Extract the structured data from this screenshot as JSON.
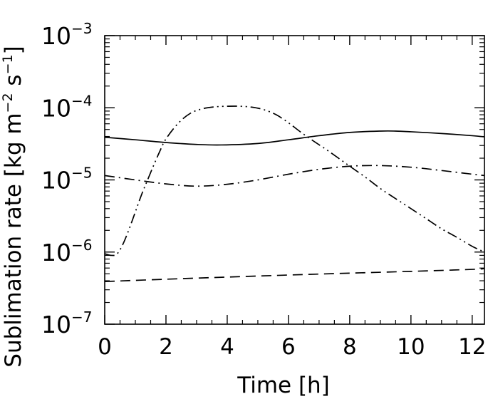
{
  "chart_data": {
    "type": "line",
    "title": "",
    "xlabel": "Time [h]",
    "ylabel_parts": [
      "Sublimation rate [kg m",
      "−2",
      " s",
      "−1",
      "]"
    ],
    "x_scale": "linear",
    "y_scale": "log",
    "xlim": [
      0,
      12.4
    ],
    "ylim": [
      1e-07,
      0.001
    ],
    "x_ticks": [
      {
        "value": 0,
        "label": "0"
      },
      {
        "value": 2,
        "label": "2"
      },
      {
        "value": 4,
        "label": "4"
      },
      {
        "value": 6,
        "label": "6"
      },
      {
        "value": 8,
        "label": "8"
      },
      {
        "value": 10,
        "label": "10"
      },
      {
        "value": 12,
        "label": "12"
      }
    ],
    "y_ticks": [
      {
        "value": 1e-07,
        "base": "10",
        "exp": "−7"
      },
      {
        "value": 1e-06,
        "base": "10",
        "exp": "−6"
      },
      {
        "value": 1e-05,
        "base": "10",
        "exp": "−5"
      },
      {
        "value": 0.0001,
        "base": "10",
        "exp": "−4"
      },
      {
        "value": 0.001,
        "base": "10",
        "exp": "−3"
      }
    ],
    "grid": false,
    "legend": "none",
    "color": "#000000",
    "series": [
      {
        "style": "solid",
        "x": [
          0,
          1,
          2,
          3,
          3.8,
          5,
          6,
          7,
          8,
          9,
          9.5,
          10,
          11,
          12,
          12.4
        ],
        "y": [
          3.9e-05,
          3.6e-05,
          3.3e-05,
          3.1e-05,
          3.05e-05,
          3.2e-05,
          3.6e-05,
          4.1e-05,
          4.55e-05,
          4.75e-05,
          4.75e-05,
          4.65e-05,
          4.4e-05,
          4.1e-05,
          3.95e-05
        ]
      },
      {
        "style": "dashdot",
        "x": [
          0,
          1,
          2,
          3,
          4,
          5,
          6,
          7,
          8,
          9,
          10,
          11,
          12,
          12.4
        ],
        "y": [
          1.15e-05,
          1e-05,
          8.8e-06,
          8.2e-06,
          8.7e-06,
          1e-05,
          1.2e-05,
          1.4e-05,
          1.55e-05,
          1.58e-05,
          1.5e-05,
          1.35e-05,
          1.2e-05,
          1.15e-05
        ]
      },
      {
        "style": "dashdotdot",
        "x": [
          0,
          0.2,
          0.4,
          0.6,
          0.8,
          1.0,
          1.2,
          1.4,
          1.6,
          1.8,
          2.0,
          2.4,
          2.8,
          3.2,
          3.6,
          4.0,
          4.4,
          4.8,
          5.2,
          5.6,
          6.0,
          6.4,
          6.8,
          7.2,
          7.6,
          8.0,
          8.5,
          9.0,
          9.5,
          10.0,
          10.5,
          11.0,
          11.5,
          12.0,
          12.4
        ],
        "y": [
          9.5e-07,
          9e-07,
          9.4e-07,
          1.3e-06,
          2.1e-06,
          3.6e-06,
          6.2e-06,
          1e-05,
          1.6e-05,
          2.5e-05,
          3.7e-05,
          6.1e-05,
          8.4e-05,
          9.7e-05,
          0.000103,
          0.000105,
          0.000105,
          0.000102,
          9.4e-05,
          8e-05,
          6.2e-05,
          4.6e-05,
          3.5e-05,
          2.7e-05,
          2.05e-05,
          1.55e-05,
          1.1e-05,
          7.6e-06,
          5.5e-06,
          4e-06,
          2.9e-06,
          2.1e-06,
          1.6e-06,
          1.2e-06,
          1e-06
        ]
      },
      {
        "style": "dashed",
        "x": [
          0,
          2,
          4,
          6,
          8,
          10,
          12,
          12.4
        ],
        "y": [
          3.9e-07,
          4.2e-07,
          4.5e-07,
          4.8e-07,
          5.1e-07,
          5.4e-07,
          5.75e-07,
          5.9e-07
        ]
      }
    ]
  }
}
